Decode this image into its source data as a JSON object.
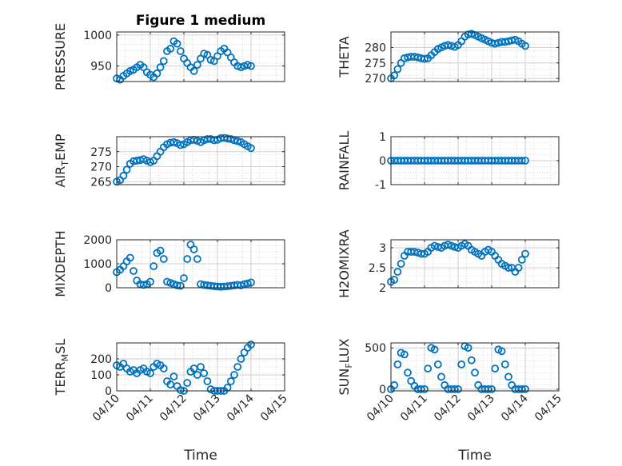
{
  "figure": {
    "title": "Figure 1 medium",
    "xlabel": "Time"
  },
  "chart_data": [
    {
      "type": "scatter",
      "ylabel": "PRESSURE",
      "ylim": [
        925,
        1005
      ],
      "yticks": [
        950,
        1000
      ],
      "yticklabels": [
        "950",
        "1000"
      ],
      "x": [
        0.0,
        0.1,
        0.2,
        0.3,
        0.4,
        0.5,
        0.6,
        0.7,
        0.8,
        0.9,
        1.0,
        1.1,
        1.2,
        1.3,
        1.4,
        1.5,
        1.6,
        1.7,
        1.8,
        1.9,
        2.0,
        2.1,
        2.2,
        2.3,
        2.4,
        2.5,
        2.6,
        2.7,
        2.8,
        2.9,
        3.0,
        3.1,
        3.2,
        3.3,
        3.4,
        3.5,
        3.6,
        3.7,
        3.8,
        3.9,
        4.0
      ],
      "y": [
        930,
        928,
        934,
        938,
        942,
        944,
        948,
        952,
        948,
        940,
        936,
        932,
        938,
        948,
        958,
        974,
        978,
        990,
        986,
        974,
        962,
        955,
        948,
        942,
        952,
        962,
        970,
        968,
        960,
        958,
        966,
        974,
        978,
        972,
        964,
        956,
        950,
        948,
        950,
        952,
        950
      ]
    },
    {
      "type": "scatter",
      "ylabel": "THETA",
      "ylim": [
        269,
        285
      ],
      "yticks": [
        270,
        275,
        280
      ],
      "yticklabels": [
        "270",
        "275",
        "280"
      ],
      "x": [
        0.0,
        0.1,
        0.2,
        0.3,
        0.4,
        0.5,
        0.6,
        0.7,
        0.8,
        0.9,
        1.0,
        1.1,
        1.2,
        1.3,
        1.4,
        1.5,
        1.6,
        1.7,
        1.8,
        1.9,
        2.0,
        2.1,
        2.2,
        2.3,
        2.4,
        2.5,
        2.6,
        2.7,
        2.8,
        2.9,
        3.0,
        3.1,
        3.2,
        3.3,
        3.4,
        3.5,
        3.6,
        3.7,
        3.8,
        3.9,
        4.0
      ],
      "y": [
        270,
        271,
        273,
        275,
        276.5,
        276.8,
        277,
        277,
        276.8,
        276.5,
        276.3,
        276.5,
        277.5,
        278.5,
        279.5,
        280,
        280.5,
        280.8,
        280.5,
        280.2,
        280.8,
        282,
        283.5,
        284.2,
        284.4,
        284,
        283.5,
        283,
        282.5,
        282,
        281.5,
        281.2,
        281.5,
        281.8,
        281.8,
        282,
        282.3,
        282.5,
        282,
        281.2,
        280.5
      ]
    },
    {
      "type": "scatter",
      "ylabel": "AIR_TEMP",
      "ylabel_parts": [
        "AIR",
        "T",
        "EMP"
      ],
      "ylim": [
        264,
        280
      ],
      "yticks": [
        265,
        270,
        275
      ],
      "yticklabels": [
        "265",
        "270",
        "275"
      ],
      "x": [
        0.0,
        0.1,
        0.2,
        0.3,
        0.4,
        0.5,
        0.6,
        0.7,
        0.8,
        0.9,
        1.0,
        1.1,
        1.2,
        1.3,
        1.4,
        1.5,
        1.6,
        1.7,
        1.8,
        1.9,
        2.0,
        2.1,
        2.2,
        2.3,
        2.4,
        2.5,
        2.6,
        2.7,
        2.8,
        2.9,
        3.0,
        3.1,
        3.2,
        3.3,
        3.4,
        3.5,
        3.6,
        3.7,
        3.8,
        3.9,
        4.0
      ],
      "y": [
        265,
        265.5,
        267,
        269,
        271,
        271.8,
        272,
        272.2,
        272.5,
        272,
        271.5,
        272,
        273.5,
        275,
        276.5,
        277.5,
        278,
        278.2,
        277.8,
        277.2,
        277.5,
        278.2,
        278.8,
        279,
        278.6,
        278.2,
        278.8,
        279.2,
        279.2,
        278.8,
        279,
        279.5,
        279.6,
        279.4,
        279.2,
        278.8,
        278.5,
        278.2,
        277.5,
        276.8,
        276.2
      ]
    },
    {
      "type": "scatter",
      "ylabel": "RAINFALL",
      "ylim": [
        -1,
        1
      ],
      "yticks": [
        -1,
        0,
        1
      ],
      "yticklabels": [
        "-1",
        "0",
        "1"
      ],
      "x": [
        0.0,
        0.1,
        0.2,
        0.3,
        0.4,
        0.5,
        0.6,
        0.7,
        0.8,
        0.9,
        1.0,
        1.1,
        1.2,
        1.3,
        1.4,
        1.5,
        1.6,
        1.7,
        1.8,
        1.9,
        2.0,
        2.1,
        2.2,
        2.3,
        2.4,
        2.5,
        2.6,
        2.7,
        2.8,
        2.9,
        3.0,
        3.1,
        3.2,
        3.3,
        3.4,
        3.5,
        3.6,
        3.7,
        3.8,
        3.9,
        4.0
      ],
      "y": [
        0,
        0,
        0,
        0,
        0,
        0,
        0,
        0,
        0,
        0,
        0,
        0,
        0,
        0,
        0,
        0,
        0,
        0,
        0,
        0,
        0,
        0,
        0,
        0,
        0,
        0,
        0,
        0,
        0,
        0,
        0,
        0,
        0,
        0,
        0,
        0,
        0,
        0,
        0,
        0,
        0
      ]
    },
    {
      "type": "scatter",
      "ylabel": "MIXDEPTH",
      "ylim": [
        0,
        2000
      ],
      "yticks": [
        0,
        1000,
        2000
      ],
      "yticklabels": [
        "0",
        "1000",
        "2000"
      ],
      "x": [
        0.0,
        0.1,
        0.2,
        0.3,
        0.4,
        0.5,
        0.6,
        0.7,
        0.8,
        0.9,
        1.0,
        1.1,
        1.2,
        1.3,
        1.4,
        1.5,
        1.6,
        1.7,
        1.8,
        1.9,
        2.0,
        2.1,
        2.2,
        2.3,
        2.4,
        2.5,
        2.6,
        2.7,
        2.8,
        2.9,
        3.0,
        3.1,
        3.2,
        3.3,
        3.4,
        3.5,
        3.6,
        3.7,
        3.8,
        3.9,
        4.0
      ],
      "y": [
        650,
        750,
        900,
        1100,
        1250,
        700,
        300,
        150,
        120,
        150,
        250,
        900,
        1450,
        1550,
        1200,
        250,
        200,
        150,
        100,
        80,
        400,
        1200,
        1800,
        1600,
        1200,
        150,
        120,
        100,
        80,
        60,
        50,
        40,
        50,
        60,
        80,
        100,
        120,
        100,
        150,
        180,
        220
      ]
    },
    {
      "type": "scatter",
      "ylabel": "H2OMIXRA",
      "ylim": [
        2,
        3.2
      ],
      "yticks": [
        2,
        2.5,
        3
      ],
      "yticklabels": [
        "2",
        "2.5",
        "3"
      ],
      "x": [
        0.0,
        0.1,
        0.2,
        0.3,
        0.4,
        0.5,
        0.6,
        0.7,
        0.8,
        0.9,
        1.0,
        1.1,
        1.2,
        1.3,
        1.4,
        1.5,
        1.6,
        1.7,
        1.8,
        1.9,
        2.0,
        2.1,
        2.2,
        2.3,
        2.4,
        2.5,
        2.6,
        2.7,
        2.8,
        2.9,
        3.0,
        3.1,
        3.2,
        3.3,
        3.4,
        3.5,
        3.6,
        3.7,
        3.8,
        3.9,
        4.0
      ],
      "y": [
        2.15,
        2.2,
        2.4,
        2.6,
        2.8,
        2.9,
        2.9,
        2.9,
        2.88,
        2.85,
        2.85,
        2.9,
        3.0,
        3.05,
        3.02,
        3.0,
        3.05,
        3.08,
        3.05,
        3.02,
        3.0,
        3.05,
        3.1,
        3.05,
        2.95,
        2.9,
        2.85,
        2.8,
        2.9,
        2.95,
        2.9,
        2.8,
        2.7,
        2.6,
        2.55,
        2.5,
        2.5,
        2.4,
        2.5,
        2.7,
        2.85
      ]
    },
    {
      "type": "scatter",
      "ylabel": "TERR_MSL",
      "ylabel_parts": [
        "TERR",
        "M",
        "SL"
      ],
      "ylim": [
        0,
        300
      ],
      "yticks": [
        0,
        100,
        200
      ],
      "yticklabels": [
        "0",
        "100",
        "200"
      ],
      "x": [
        0.0,
        0.1,
        0.2,
        0.3,
        0.4,
        0.5,
        0.6,
        0.7,
        0.8,
        0.9,
        1.0,
        1.1,
        1.2,
        1.3,
        1.4,
        1.5,
        1.6,
        1.7,
        1.8,
        1.9,
        2.0,
        2.1,
        2.2,
        2.3,
        2.4,
        2.5,
        2.6,
        2.7,
        2.8,
        2.9,
        3.0,
        3.1,
        3.2,
        3.3,
        3.4,
        3.5,
        3.6,
        3.7,
        3.8,
        3.9,
        4.0
      ],
      "y": [
        160,
        150,
        170,
        140,
        120,
        130,
        110,
        130,
        140,
        120,
        110,
        150,
        170,
        160,
        140,
        60,
        40,
        90,
        30,
        5,
        0,
        50,
        120,
        140,
        100,
        150,
        110,
        60,
        10,
        0,
        0,
        0,
        0,
        20,
        60,
        100,
        150,
        200,
        240,
        270,
        290
      ]
    },
    {
      "type": "scatter",
      "ylabel": "SUN_FLUX",
      "ylabel_parts": [
        "SUN",
        "F",
        "LUX"
      ],
      "ylim": [
        -20,
        560
      ],
      "yticks": [
        0,
        500
      ],
      "yticklabels": [
        "0",
        "500"
      ],
      "x": [
        0.0,
        0.1,
        0.2,
        0.3,
        0.4,
        0.5,
        0.6,
        0.7,
        0.8,
        0.9,
        1.0,
        1.1,
        1.2,
        1.3,
        1.4,
        1.5,
        1.6,
        1.7,
        1.8,
        1.9,
        2.0,
        2.1,
        2.2,
        2.3,
        2.4,
        2.5,
        2.6,
        2.7,
        2.8,
        2.9,
        3.0,
        3.1,
        3.2,
        3.3,
        3.4,
        3.5,
        3.6,
        3.7,
        3.8,
        3.9,
        4.0
      ],
      "y": [
        0,
        50,
        300,
        440,
        420,
        200,
        100,
        40,
        0,
        0,
        0,
        250,
        500,
        480,
        300,
        150,
        50,
        0,
        0,
        0,
        0,
        300,
        520,
        500,
        350,
        200,
        50,
        0,
        0,
        0,
        0,
        250,
        480,
        460,
        300,
        150,
        50,
        0,
        0,
        0,
        0
      ]
    }
  ],
  "xaxis": {
    "lim": [
      0,
      5
    ],
    "ticks": [
      0,
      1,
      2,
      3,
      4,
      5
    ],
    "ticklabels": [
      "04/10",
      "04/11",
      "04/12",
      "04/13",
      "04/14",
      "04/15"
    ]
  },
  "colors": {
    "marker": "#0072bd",
    "axes": "#262626",
    "grid": "#dcdcdc"
  }
}
